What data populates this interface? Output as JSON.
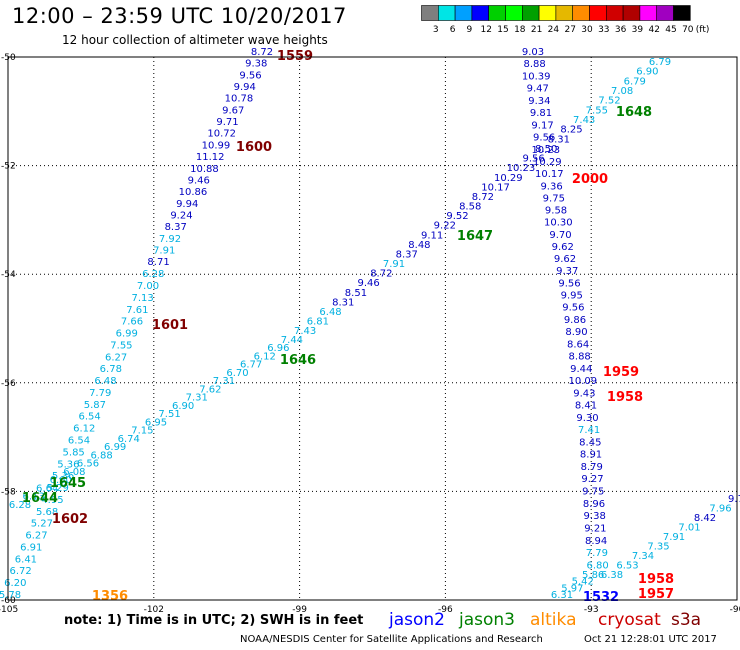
{
  "header": {
    "title": "12:00  –  23:59  UTC  10/20/2017",
    "subtitle": "12 hour collection of altimeter wave heights"
  },
  "colorbar": {
    "unit_label": "(ft)",
    "bins": [
      {
        "label": "3",
        "color": "#7f7f7f"
      },
      {
        "label": "6",
        "color": "#00e5e5"
      },
      {
        "label": "9",
        "color": "#00a0ff"
      },
      {
        "label": "12",
        "color": "#0000ff"
      },
      {
        "label": "15",
        "color": "#00d000"
      },
      {
        "label": "18",
        "color": "#00ff00"
      },
      {
        "label": "21",
        "color": "#00a000"
      },
      {
        "label": "24",
        "color": "#ffff00"
      },
      {
        "label": "27",
        "color": "#e5b800"
      },
      {
        "label": "30",
        "color": "#ff8c00"
      },
      {
        "label": "33",
        "color": "#ff0000"
      },
      {
        "label": "36",
        "color": "#d00000"
      },
      {
        "label": "39",
        "color": "#b00000"
      },
      {
        "label": "42",
        "color": "#ff00ff"
      },
      {
        "label": "45",
        "color": "#a000c0"
      },
      {
        "label": "70",
        "color": "#000000"
      }
    ]
  },
  "map": {
    "lon_ticks": [
      "-105",
      "-102",
      "-99",
      "-96",
      "-93",
      "-90"
    ],
    "lat_ticks": [
      "-50",
      "-52",
      "-54",
      "-56",
      "-58",
      "-60"
    ],
    "lon_range": [
      -105,
      -90
    ],
    "lat_range": [
      -60,
      -50
    ],
    "satellite_colors": {
      "jason2": "#0000ff",
      "jason3": "#008000",
      "altika": "#ff8c00",
      "cryosat": "#cc0000",
      "s3a": "#800000"
    },
    "value_colors": {
      "low": "#00b0e0",
      "high": "#0000c0"
    },
    "tracks": [
      {
        "id": "track-1600",
        "values": [
          "8.72",
          "9.38",
          "9.56",
          "9.94",
          "10.78",
          "9.67",
          "9.71",
          "10.72",
          "10.99",
          "11.12",
          "10.88",
          "9.46",
          "10.86",
          "9.94",
          "9.24",
          "8.37",
          "7.92",
          "7.91",
          "8.71",
          "6.28",
          "7.00",
          "7.13",
          "7.61",
          "7.66",
          "6.99",
          "7.55",
          "6.27",
          "6.78",
          "6.48",
          "7.79",
          "5.87",
          "6.54",
          "6.12",
          "6.54",
          "5.85",
          "5.36",
          "5.36",
          "5.29",
          "4.95",
          "5.68",
          "5.27",
          "6.27",
          "6.91",
          "6.41",
          "6.72",
          "6.20",
          "5.78"
        ]
      },
      {
        "id": "track-1645",
        "values": [
          "6.28",
          "6.13",
          "6.64",
          "6.60",
          "6.08",
          "6.56",
          "6.88",
          "6.99",
          "6.74",
          "7.15",
          "6.95",
          "7.51",
          "6.90",
          "7.31",
          "7.62",
          "7.31",
          "6.70",
          "6.77",
          "6.12",
          "6.96",
          "7.44",
          "7.43",
          "6.81",
          "6.48",
          "8.31",
          "8.51",
          "9.46",
          "8.72",
          "7.91",
          "8.37",
          "8.48",
          "9.11",
          "9.22",
          "9.52",
          "8.58",
          "8.72",
          "10.17",
          "10.29",
          "10.23",
          "9.56",
          "8.50",
          "8.31",
          "8.25",
          "7.43",
          "7.55",
          "7.52",
          "7.08",
          "6.79",
          "6.90",
          "6.79"
        ]
      },
      {
        "id": "track-1959",
        "values": [
          "9.03",
          "8.88",
          "10.39",
          "9.47",
          "9.34",
          "9.81",
          "9.17",
          "9.56",
          "10.23",
          "10.29",
          "10.17",
          "9.36",
          "9.75",
          "9.58",
          "10.30",
          "9.70",
          "9.62",
          "9.62",
          "9.37",
          "9.56",
          "9.95",
          "9.56",
          "9.86",
          "8.90",
          "8.64",
          "8.88",
          "9.44",
          "10.09",
          "9.43",
          "8.41",
          "9.30",
          "7.41",
          "8.45",
          "8.91",
          "8.79",
          "9.27",
          "9.75",
          "8.96",
          "9.38",
          "9.21",
          "8.94",
          "7.79",
          "6.80",
          "5.86",
          "5.42",
          "5.97",
          "6.31"
        ]
      },
      {
        "id": "track-1958",
        "values": [
          "6.38",
          "6.53",
          "7.34",
          "7.35",
          "7.91",
          "7.01",
          "8.42",
          "7.96",
          "9.7"
        ]
      }
    ],
    "labels": [
      {
        "text": "1559",
        "color": "#800000"
      },
      {
        "text": "1600",
        "color": "#800000"
      },
      {
        "text": "1601",
        "color": "#800000"
      },
      {
        "text": "1602",
        "color": "#800000"
      },
      {
        "text": "1356",
        "color": "#ff8c00"
      },
      {
        "text": "1644",
        "color": "#008000"
      },
      {
        "text": "1645",
        "color": "#008000"
      },
      {
        "text": "1646",
        "color": "#008000"
      },
      {
        "text": "1647",
        "color": "#008000"
      },
      {
        "text": "1648",
        "color": "#008000"
      },
      {
        "text": "2000",
        "color": "#ff0000"
      },
      {
        "text": "1959",
        "color": "#ff0000"
      },
      {
        "text": "1958",
        "color": "#ff0000"
      },
      {
        "text": "1958",
        "color": "#ff0000"
      },
      {
        "text": "1957",
        "color": "#ff0000"
      },
      {
        "text": "1532",
        "color": "#0000ff"
      }
    ]
  },
  "notes": {
    "text": "note:  1) Time is in UTC;  2) SWH is in feet",
    "legend": [
      {
        "name": "jason2",
        "color": "#0000ff"
      },
      {
        "name": "jason3",
        "color": "#008000"
      },
      {
        "name": "altika",
        "color": "#ff8c00"
      },
      {
        "name": "cryosat",
        "color": "#cc0000"
      },
      {
        "name": "s3a",
        "color": "#800000"
      }
    ]
  },
  "footer": {
    "credit": "NOAA/NESDIS Center for Satellite Applications and Research",
    "timestamp": "Oct 21 12:28:01 UTC 2017"
  }
}
